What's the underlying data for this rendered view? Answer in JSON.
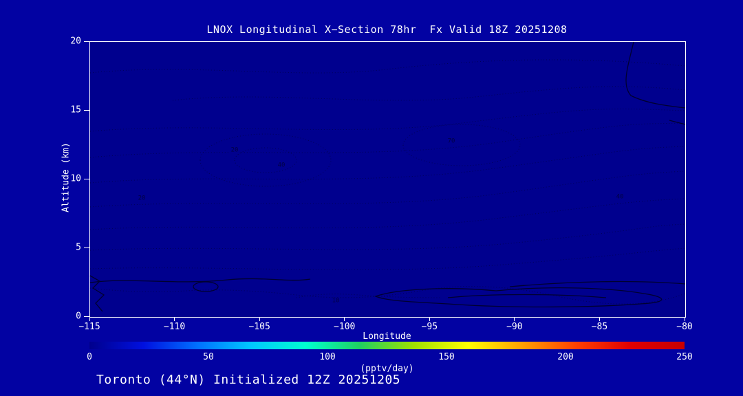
{
  "chart_data": {
    "type": "heatmap",
    "subtype": "contour-cross-section",
    "title": "LNOX Longitudinal X−Section 78hr  Fx Valid 18Z 20251208",
    "xlabel": "Longitude",
    "ylabel": "Altitude (km)",
    "x_range": [
      -115,
      -80
    ],
    "y_range": [
      0,
      20
    ],
    "x_ticks": [
      "−115",
      "−110",
      "−105",
      "−100",
      "−95",
      "−90",
      "−85",
      "−80"
    ],
    "y_ticks": [
      "20",
      "15",
      "10",
      "5",
      "0"
    ],
    "grid": false,
    "legend_position": "none",
    "contour_levels_pptv_day": [
      10,
      20,
      30,
      40,
      50,
      60,
      70
    ],
    "contour_labels": [
      {
        "text": "20"
      },
      {
        "text": "40"
      },
      {
        "text": "70"
      },
      {
        "text": "10"
      },
      {
        "text": "20"
      },
      {
        "text": "40"
      }
    ],
    "colorbar": {
      "min": 0,
      "max": 250,
      "ticks": [
        "0",
        "50",
        "100",
        "150",
        "200",
        "250"
      ],
      "units": "(pptv/day)",
      "colors": [
        "#00008c",
        "#0010e0",
        "#0070ff",
        "#00c8ff",
        "#00ffd0",
        "#20d060",
        "#a0e000",
        "#ffff00",
        "#ffa000",
        "#ff4000",
        "#e00000",
        "#c80000"
      ]
    },
    "caption": "Toronto (44°N) Initialized 12Z 20251205"
  },
  "colors": {
    "background": "#0202a2",
    "plot_background": "#00008e",
    "axis": "#ffffff",
    "text": "#ffffff",
    "contour": "#000050"
  }
}
